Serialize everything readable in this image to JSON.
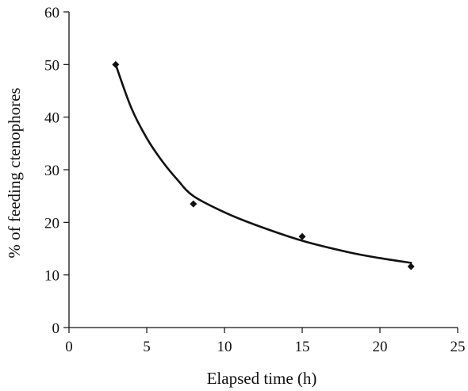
{
  "chart_data": {
    "type": "scatter",
    "title": "",
    "xlabel": "Elapsed time (h)",
    "ylabel": "% of feeding ctenophores",
    "xlim": [
      0,
      25
    ],
    "ylim": [
      0,
      60
    ],
    "x_ticks": [
      0,
      5,
      10,
      15,
      20,
      25
    ],
    "y_ticks": [
      0,
      10,
      20,
      30,
      40,
      50,
      60
    ],
    "x_tick_labels": [
      "0",
      "5",
      "10",
      "15",
      "20",
      "25"
    ],
    "y_tick_labels": [
      "0",
      "10",
      "20",
      "30",
      "40",
      "50",
      "60"
    ],
    "grid": false,
    "legend": "none",
    "series": [
      {
        "points": [
          {
            "x": 3,
            "y": 50
          },
          {
            "x": 8,
            "y": 23.5
          },
          {
            "x": 15,
            "y": 17.3
          },
          {
            "x": 22,
            "y": 11.6
          }
        ],
        "marker": "diamond",
        "color": "#111111"
      }
    ],
    "trendline": {
      "x_range": [
        3,
        22
      ],
      "curve": [
        {
          "x": 3,
          "y": 50
        },
        {
          "x": 4,
          "y": 41.8
        },
        {
          "x": 5,
          "y": 36.0
        },
        {
          "x": 6,
          "y": 31.6
        },
        {
          "x": 7,
          "y": 28.0
        },
        {
          "x": 8,
          "y": 25.0
        },
        {
          "x": 10,
          "y": 21.9
        },
        {
          "x": 12,
          "y": 19.5
        },
        {
          "x": 15,
          "y": 16.5
        },
        {
          "x": 18,
          "y": 14.3
        },
        {
          "x": 20,
          "y": 13.2
        },
        {
          "x": 22,
          "y": 12.3
        }
      ],
      "color": "#111111"
    }
  }
}
